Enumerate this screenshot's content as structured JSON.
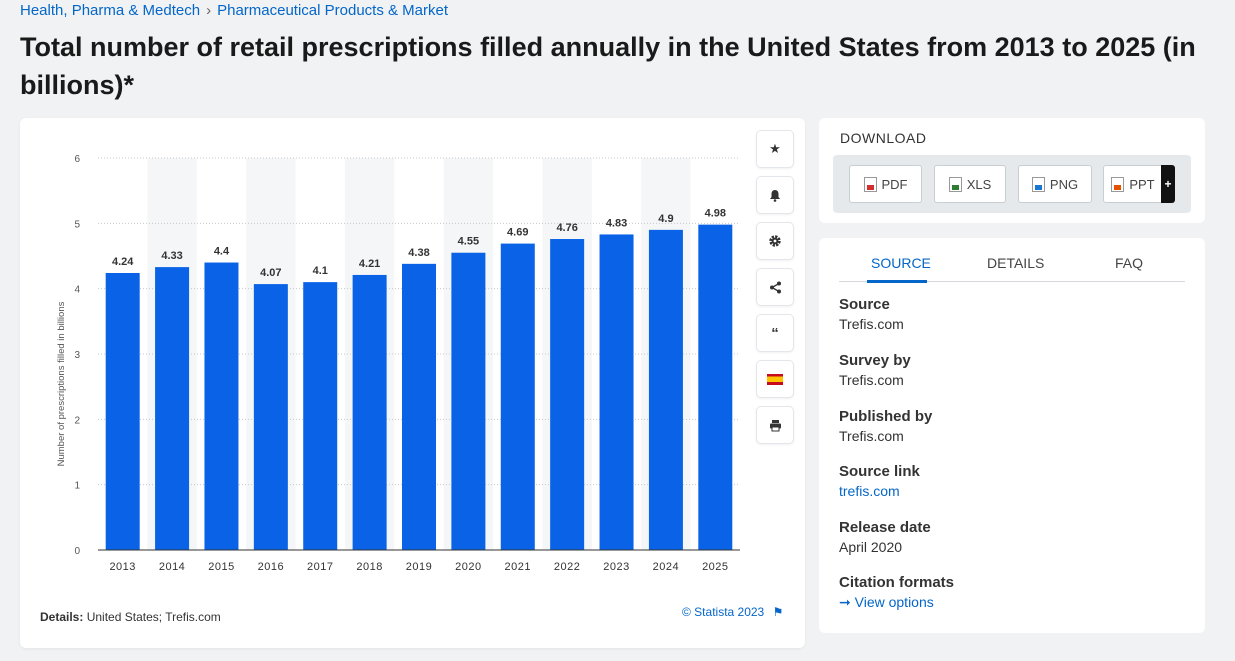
{
  "breadcrumb": {
    "item1": "Health, Pharma & Medtech",
    "separator": "›",
    "item2": "Pharmaceutical Products & Market"
  },
  "page_title": "Total number of retail prescriptions filled annually in the United States from 2013 to 2025 (in billions)*",
  "chart_data": {
    "type": "bar",
    "categories": [
      "2013",
      "2014",
      "2015",
      "2016",
      "2017",
      "2018",
      "2019",
      "2020",
      "2021",
      "2022",
      "2023",
      "2024",
      "2025"
    ],
    "values": [
      4.24,
      4.33,
      4.4,
      4.07,
      4.1,
      4.21,
      4.38,
      4.55,
      4.69,
      4.76,
      4.83,
      4.9,
      4.98
    ],
    "value_labels": [
      "4.24",
      "4.33",
      "4.4",
      "4.07",
      "4.1",
      "4.21",
      "4.38",
      "4.55",
      "4.69",
      "4.76",
      "4.83",
      "4.9",
      "4.98"
    ],
    "ylabel": "Number of prescriptions filled in billions",
    "ylim": [
      0,
      6
    ],
    "yticks": [
      "0",
      "1",
      "2",
      "3",
      "4",
      "5",
      "6"
    ],
    "grid": true,
    "bar_color": "#0a63e6"
  },
  "chart_footer": {
    "details_label": "Details:",
    "details_value": "United States; Trefis.com",
    "copyright": "© Statista 2023"
  },
  "side_buttons": [
    "star-icon",
    "bell-icon",
    "gear-icon",
    "share-icon",
    "quote-icon",
    "spain-flag-icon",
    "print-icon"
  ],
  "download": {
    "title": "DOWNLOAD",
    "buttons": [
      {
        "label": "PDF"
      },
      {
        "label": "XLS"
      },
      {
        "label": "PNG"
      },
      {
        "label": "PPT"
      }
    ],
    "plus": "+"
  },
  "info": {
    "tabs": [
      "SOURCE",
      "DETAILS",
      "FAQ"
    ],
    "fields": [
      {
        "label": "Source",
        "value": "Trefis.com"
      },
      {
        "label": "Survey by",
        "value": "Trefis.com"
      },
      {
        "label": "Published by",
        "value": "Trefis.com"
      },
      {
        "label": "Source link",
        "value": "trefis.com"
      },
      {
        "label": "Release date",
        "value": "April 2020"
      },
      {
        "label": "Citation formats",
        "value": "View options"
      }
    ]
  },
  "colors": {
    "accent": "#0466c8",
    "bar": "#0a63e6"
  }
}
